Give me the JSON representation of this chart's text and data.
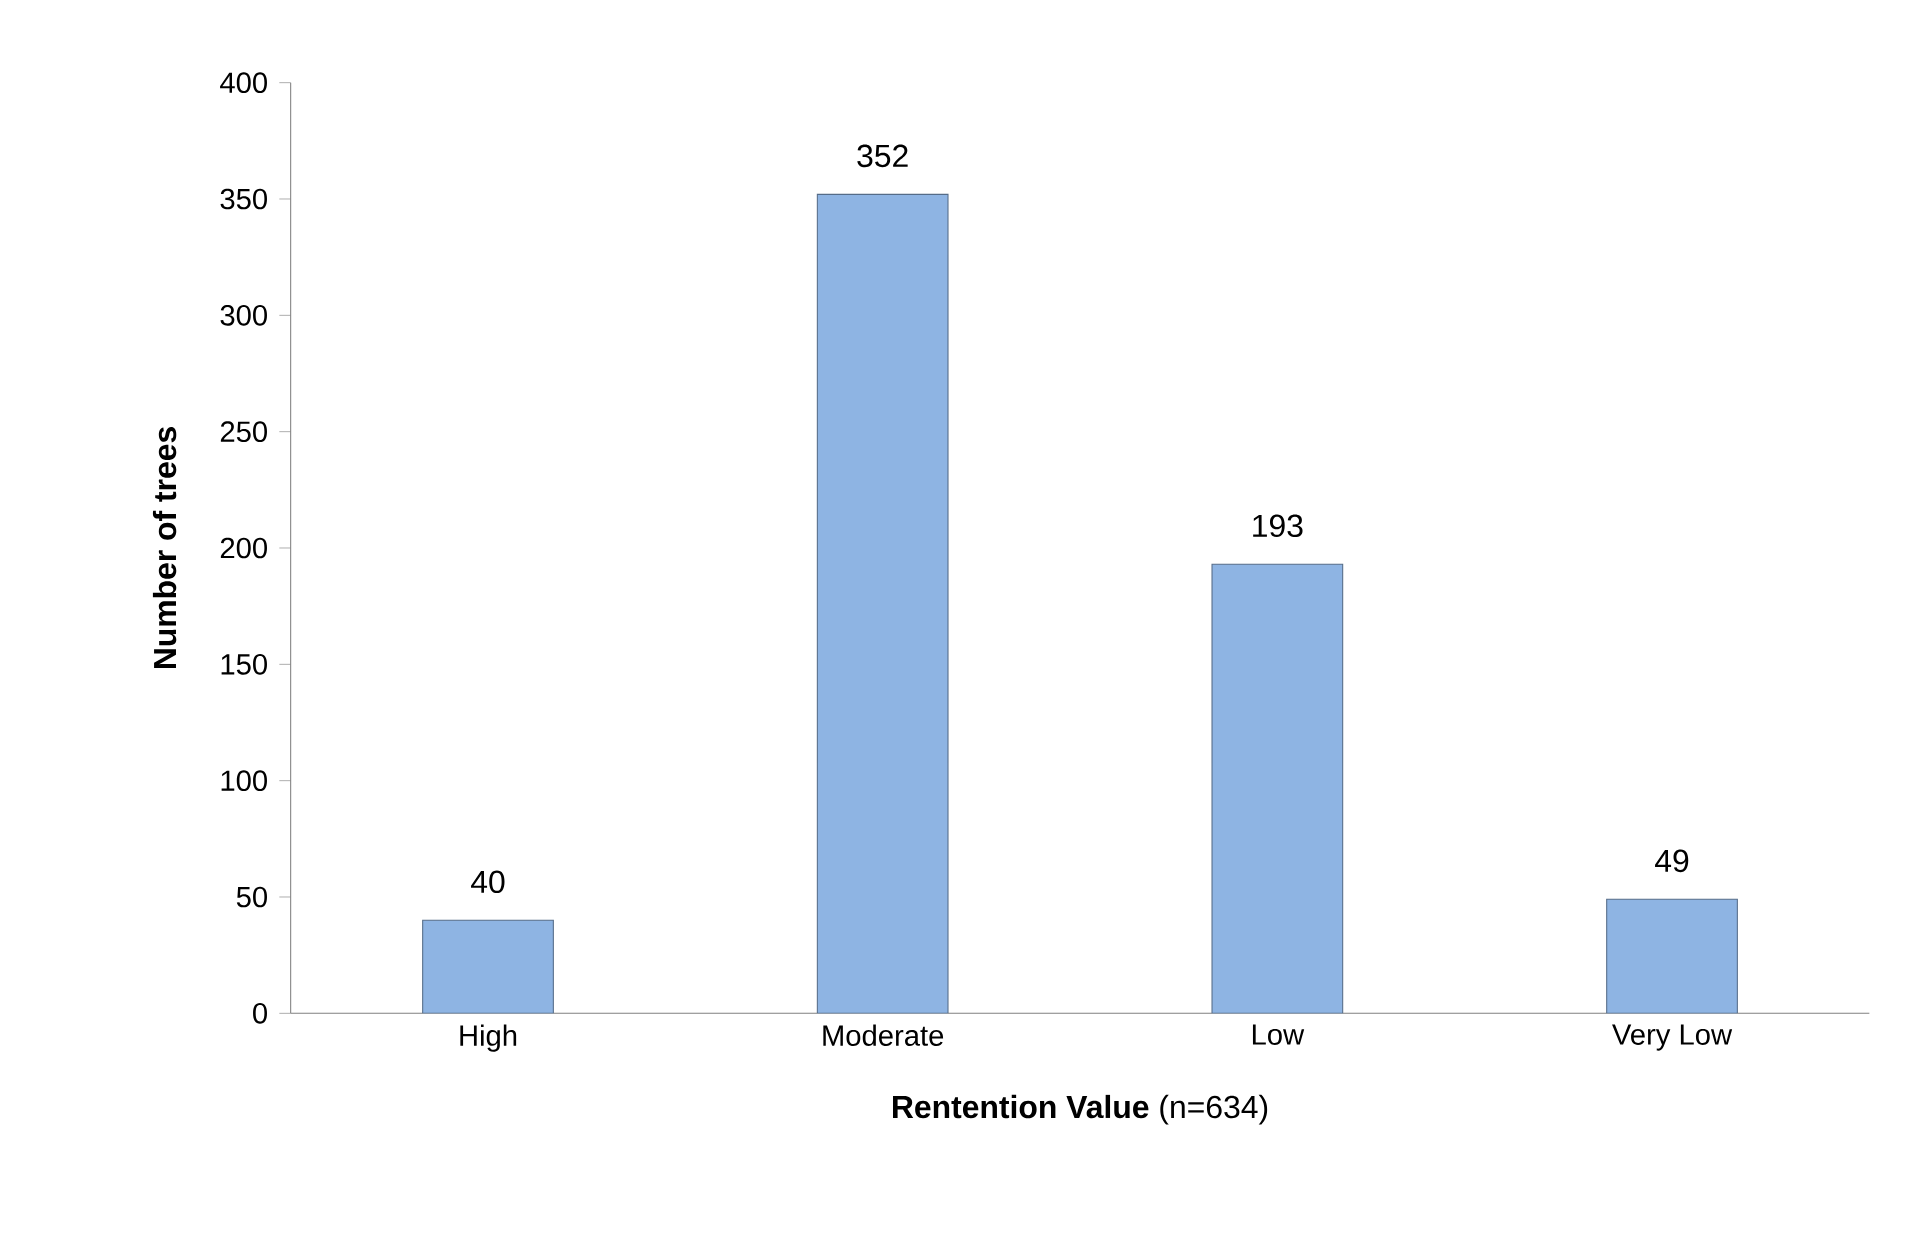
{
  "chart_data": {
    "type": "bar",
    "xlabel": "**Rentention Value** (n=634)",
    "ylabel": "Number of trees",
    "categories": [
      "High",
      "Moderate",
      "Low",
      "Very Low"
    ],
    "values": [
      40,
      352,
      193,
      49
    ],
    "color": "#8eb4e3",
    "ylim": [
      0,
      400
    ],
    "yticks": [
      0,
      50,
      100,
      150,
      200,
      250,
      300,
      350,
      400
    ],
    "data_labels": true
  }
}
